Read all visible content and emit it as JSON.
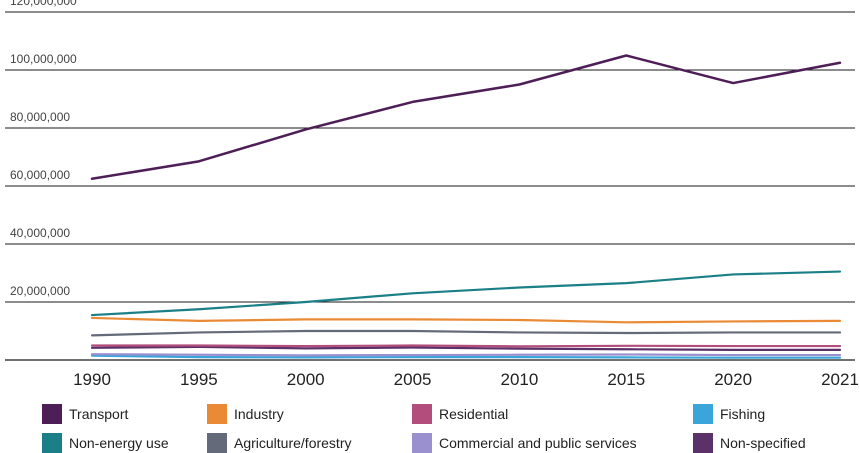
{
  "chart_data": {
    "type": "line",
    "title": "",
    "xlabel": "",
    "ylabel": "",
    "x": [
      1990,
      1995,
      2000,
      2005,
      2010,
      2015,
      2020,
      2021
    ],
    "ylim": [
      0,
      120000000
    ],
    "yticks": [
      {
        "value": 20000000,
        "label": "20,000,000"
      },
      {
        "value": 40000000,
        "label": "40,000,000"
      },
      {
        "value": 60000000,
        "label": "60,000,000"
      },
      {
        "value": 80000000,
        "label": "80,000,000"
      },
      {
        "value": 100000000,
        "label": "100,000,000"
      },
      {
        "value": 120000000,
        "label": "120,000,000"
      }
    ],
    "xtick_labels": [
      "1990",
      "1995",
      "2000",
      "2005",
      "2010",
      "2015",
      "2020",
      "2021"
    ],
    "grid": "horizontal",
    "legend_position": "bottom",
    "series": [
      {
        "name": "Transport",
        "color": "#4e1f57",
        "values": [
          62500000,
          68500000,
          79500000,
          89000000,
          95000000,
          105000000,
          95500000,
          102500000
        ]
      },
      {
        "name": "Industry",
        "color": "#ea8a35",
        "values": [
          14500000,
          13500000,
          14000000,
          14000000,
          13800000,
          13000000,
          13300000,
          13500000
        ]
      },
      {
        "name": "Residential",
        "color": "#b24d7c",
        "values": [
          5000000,
          5000000,
          4800000,
          5000000,
          4700000,
          4900000,
          4800000,
          4800000
        ]
      },
      {
        "name": "Fishing",
        "color": "#3aa5d8",
        "values": [
          1500000,
          1000000,
          900000,
          1000000,
          1000000,
          900000,
          800000,
          800000
        ]
      },
      {
        "name": "Non-energy use",
        "color": "#1a7f86",
        "values": [
          15500000,
          17500000,
          20000000,
          23000000,
          25000000,
          26500000,
          29500000,
          30500000
        ]
      },
      {
        "name": "Agriculture/forestry",
        "color": "#646a7a",
        "values": [
          8500000,
          9500000,
          10000000,
          10000000,
          9500000,
          9300000,
          9500000,
          9500000
        ]
      },
      {
        "name": "Commercial and public services",
        "color": "#9a8fcf",
        "values": [
          2000000,
          1800000,
          1600000,
          1700000,
          1800000,
          1900000,
          1700000,
          1700000
        ]
      },
      {
        "name": "Non-specified",
        "color": "#5b3168",
        "values": [
          4200000,
          4500000,
          4000000,
          4300000,
          3900000,
          3700000,
          3500000,
          3500000
        ]
      }
    ]
  }
}
